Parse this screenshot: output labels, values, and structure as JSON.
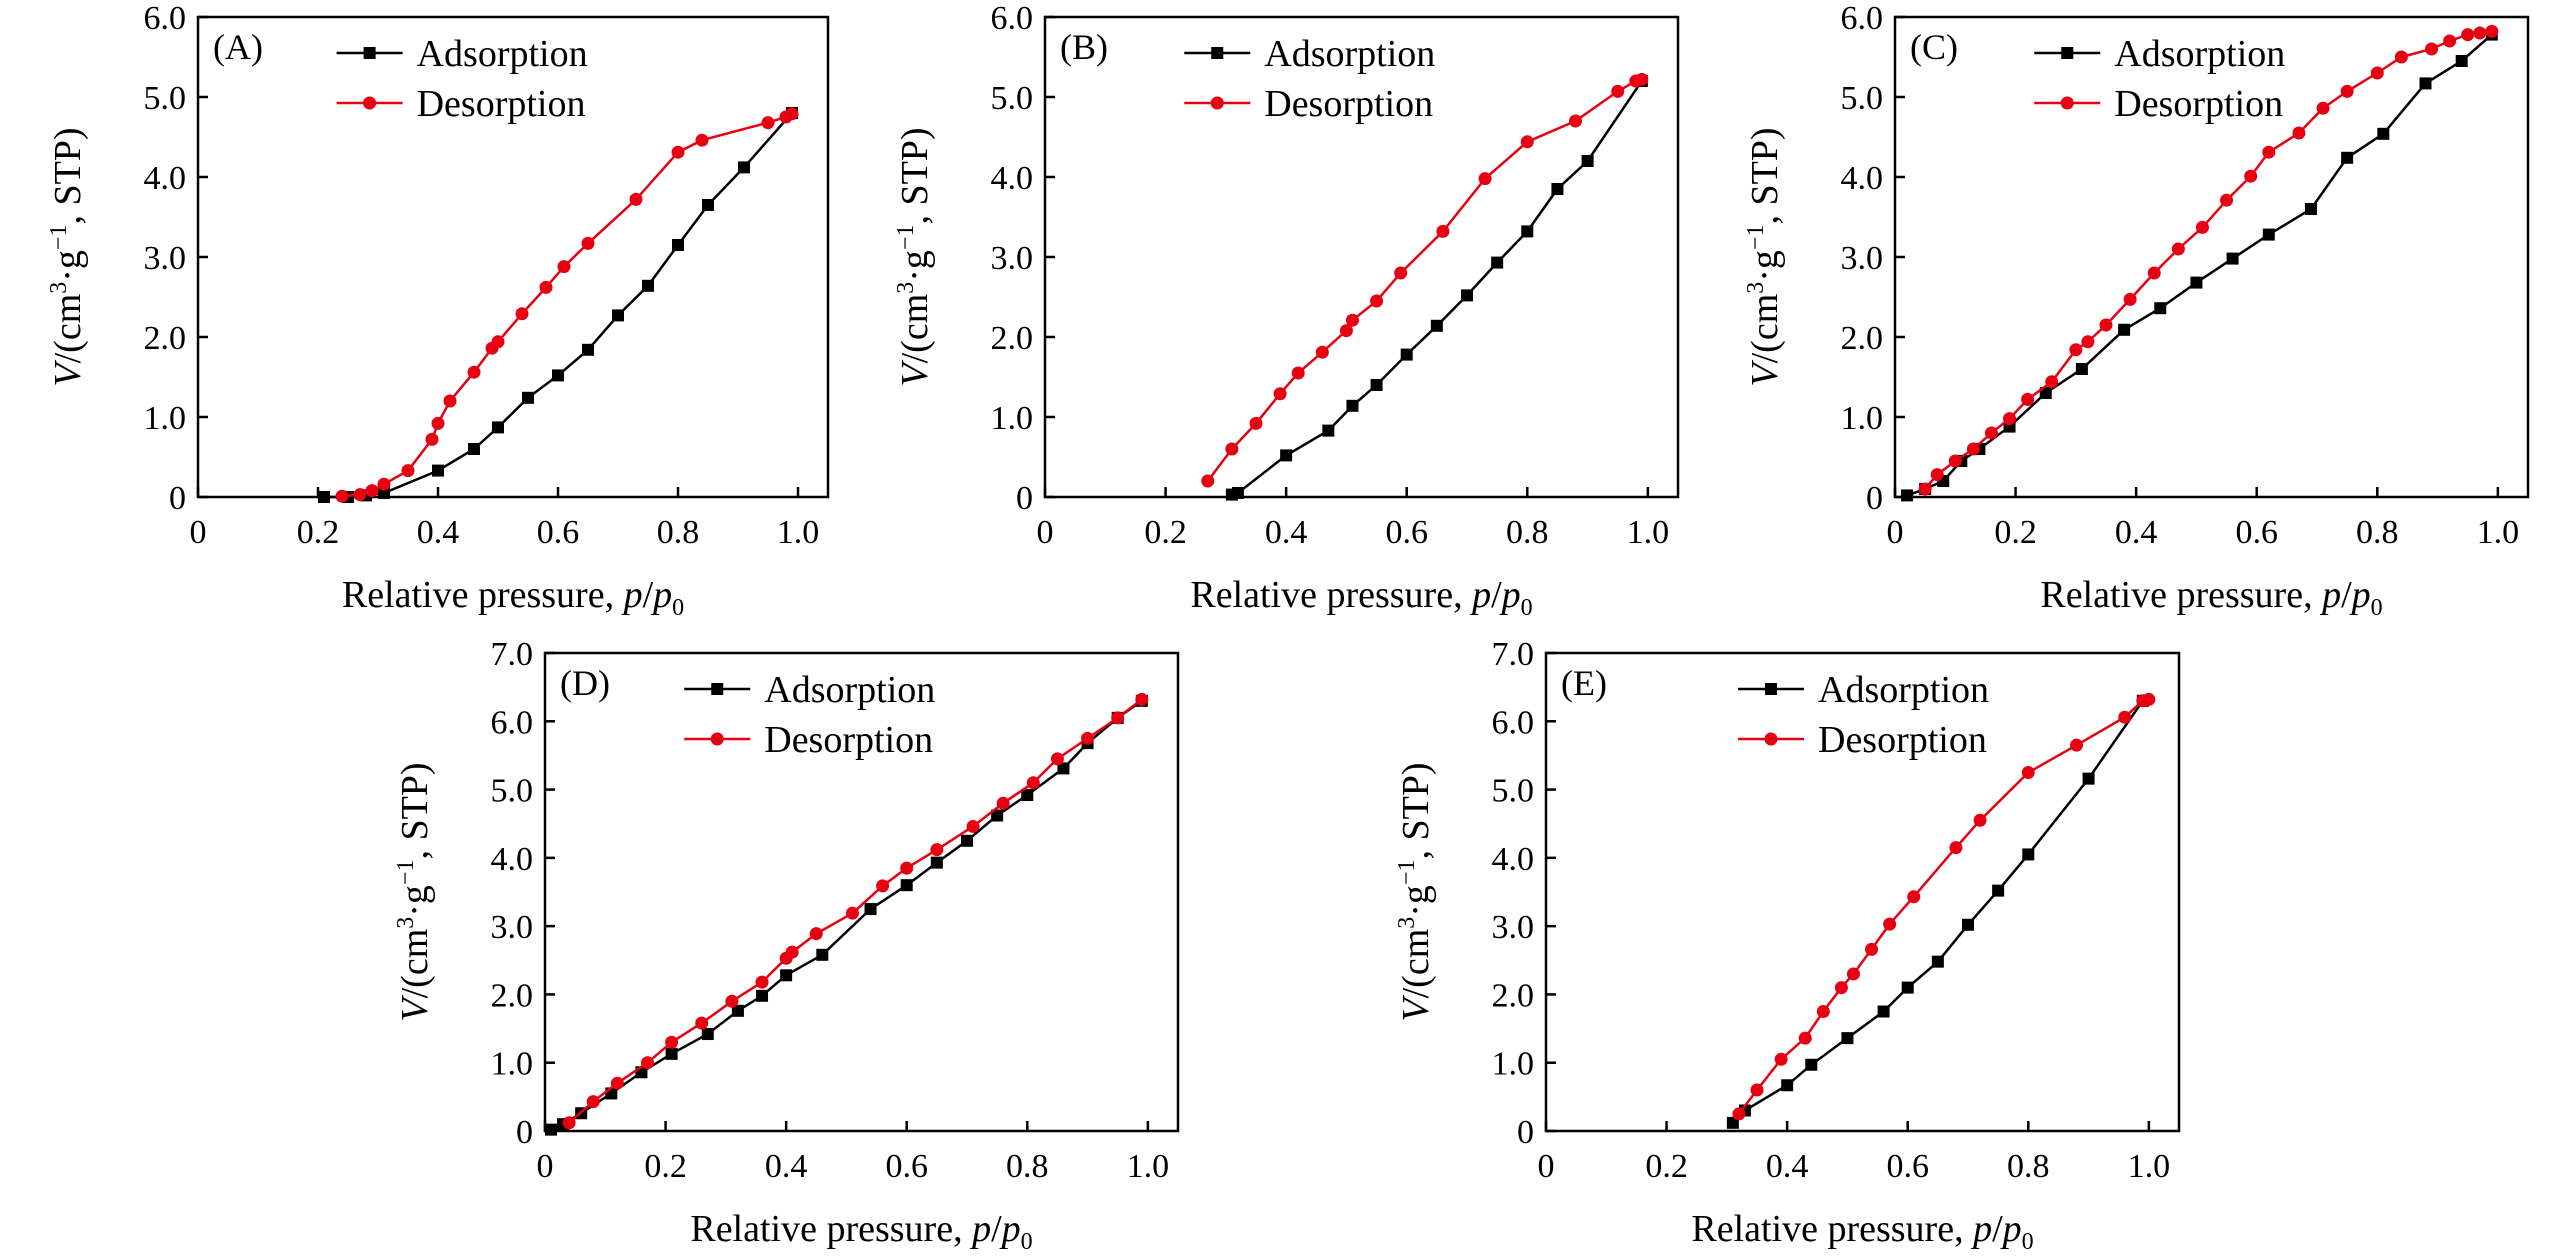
{
  "figure": {
    "legend_labels": {
      "adsorption": "Adsorption",
      "desorption": "Desorption"
    },
    "colors": {
      "adsorption": "#000000",
      "desorption": "#e60012",
      "axis": "#000000"
    },
    "x_axis_title": "Relative pressure,",
    "x_axis_var_p": "p",
    "x_axis_slash": "/",
    "x_axis_var_p0": "p",
    "x_axis_sub0": "0",
    "y_axis_title_V": "V",
    "y_axis_title_open": "/(cm",
    "y_axis_sup3": "3",
    "y_axis_dot_g": "·g",
    "y_axis_sup_minus1": "−1",
    "y_axis_title_close": ", STP)"
  },
  "chart_data": [
    {
      "type": "line",
      "panel_label": "(A)",
      "xlabel": "Relative pressure, p/p0",
      "ylabel": "V/(cm3·g−1, STP)",
      "xlim": [
        0,
        1.05
      ],
      "ylim": [
        0,
        6.0
      ],
      "xticks": [
        0,
        0.2,
        0.4,
        0.6,
        0.8,
        1.0
      ],
      "xtick_labels": [
        "0",
        "0.2",
        "0.4",
        "0.6",
        "0.8",
        "1.0"
      ],
      "yticks": [
        0,
        1.0,
        2.0,
        3.0,
        4.0,
        5.0,
        6.0
      ],
      "ytick_labels": [
        "0",
        "1.0",
        "2.0",
        "3.0",
        "4.0",
        "5.0",
        "6.0"
      ],
      "legend": "top-center",
      "series": [
        {
          "name": "Adsorption",
          "x": [
            0.21,
            0.25,
            0.28,
            0.31,
            0.4,
            0.46,
            0.5,
            0.55,
            0.6,
            0.65,
            0.7,
            0.75,
            0.8,
            0.85,
            0.91,
            0.99
          ],
          "y": [
            0,
            0,
            0.02,
            0.05,
            0.33,
            0.6,
            0.87,
            1.24,
            1.52,
            1.84,
            2.27,
            2.64,
            3.15,
            3.65,
            4.12,
            4.8
          ]
        },
        {
          "name": "Desorption",
          "x": [
            0.24,
            0.27,
            0.29,
            0.31,
            0.35,
            0.39,
            0.4,
            0.42,
            0.46,
            0.49,
            0.5,
            0.54,
            0.58,
            0.61,
            0.65,
            0.73,
            0.8,
            0.84,
            0.95,
            0.98,
            0.99
          ],
          "y": [
            0.01,
            0.03,
            0.08,
            0.16,
            0.33,
            0.72,
            0.92,
            1.2,
            1.56,
            1.86,
            1.94,
            2.29,
            2.62,
            2.88,
            3.17,
            3.72,
            4.31,
            4.46,
            4.68,
            4.75,
            4.79
          ]
        }
      ]
    },
    {
      "type": "line",
      "panel_label": "(B)",
      "xlabel": "Relative pressure, p/p0",
      "ylabel": "V/(cm3·g−1, STP)",
      "xlim": [
        0,
        1.05
      ],
      "ylim": [
        0,
        6.0
      ],
      "xticks": [
        0,
        0.2,
        0.4,
        0.6,
        0.8,
        1.0
      ],
      "xtick_labels": [
        "0",
        "0.2",
        "0.4",
        "0.6",
        "0.8",
        "1.0"
      ],
      "yticks": [
        0,
        1.0,
        2.0,
        3.0,
        4.0,
        5.0,
        6.0
      ],
      "ytick_labels": [
        "0",
        "1.0",
        "2.0",
        "3.0",
        "4.0",
        "5.0",
        "6.0"
      ],
      "legend": "top-center",
      "series": [
        {
          "name": "Adsorption",
          "x": [
            0.31,
            0.32,
            0.4,
            0.47,
            0.51,
            0.55,
            0.6,
            0.65,
            0.7,
            0.75,
            0.8,
            0.85,
            0.9,
            0.99
          ],
          "y": [
            0.03,
            0.05,
            0.52,
            0.83,
            1.14,
            1.4,
            1.78,
            2.14,
            2.52,
            2.93,
            3.32,
            3.85,
            4.2,
            5.2
          ]
        },
        {
          "name": "Desorption",
          "x": [
            0.27,
            0.31,
            0.35,
            0.39,
            0.42,
            0.46,
            0.5,
            0.51,
            0.55,
            0.59,
            0.66,
            0.73,
            0.8,
            0.88,
            0.95,
            0.98,
            0.99
          ],
          "y": [
            0.2,
            0.6,
            0.92,
            1.29,
            1.55,
            1.81,
            2.08,
            2.21,
            2.45,
            2.8,
            3.32,
            3.98,
            4.44,
            4.7,
            5.07,
            5.2,
            5.22
          ]
        }
      ]
    },
    {
      "type": "line",
      "panel_label": "(C)",
      "xlabel": "Relative pressure, p/p0",
      "ylabel": "V/(cm3·g−1, STP)",
      "xlim": [
        0,
        1.05
      ],
      "ylim": [
        0,
        6.0
      ],
      "xticks": [
        0,
        0.2,
        0.4,
        0.6,
        0.8,
        1.0
      ],
      "xtick_labels": [
        "0",
        "0.2",
        "0.4",
        "0.6",
        "0.8",
        "1.0"
      ],
      "yticks": [
        0,
        1.0,
        2.0,
        3.0,
        4.0,
        5.0,
        6.0
      ],
      "ytick_labels": [
        "0",
        "1.0",
        "2.0",
        "3.0",
        "4.0",
        "5.0",
        "6.0"
      ],
      "legend": "top-center",
      "series": [
        {
          "name": "Adsorption",
          "x": [
            0.02,
            0.05,
            0.08,
            0.11,
            0.14,
            0.19,
            0.25,
            0.31,
            0.38,
            0.44,
            0.5,
            0.56,
            0.62,
            0.69,
            0.75,
            0.81,
            0.88,
            0.94,
            0.99
          ],
          "y": [
            0.02,
            0.1,
            0.2,
            0.45,
            0.6,
            0.88,
            1.3,
            1.6,
            2.09,
            2.36,
            2.68,
            2.98,
            3.28,
            3.6,
            4.24,
            4.54,
            5.17,
            5.45,
            5.78
          ]
        },
        {
          "name": "Desorption",
          "x": [
            0.05,
            0.07,
            0.1,
            0.13,
            0.16,
            0.19,
            0.22,
            0.26,
            0.3,
            0.32,
            0.35,
            0.39,
            0.43,
            0.47,
            0.51,
            0.55,
            0.59,
            0.62,
            0.67,
            0.71,
            0.75,
            0.8,
            0.84,
            0.89,
            0.92,
            0.95,
            0.97,
            0.99
          ],
          "y": [
            0.1,
            0.28,
            0.45,
            0.6,
            0.8,
            0.98,
            1.22,
            1.44,
            1.84,
            1.94,
            2.15,
            2.47,
            2.8,
            3.1,
            3.37,
            3.71,
            4.01,
            4.31,
            4.55,
            4.86,
            5.07,
            5.3,
            5.5,
            5.6,
            5.7,
            5.78,
            5.8,
            5.82
          ]
        }
      ]
    },
    {
      "type": "line",
      "panel_label": "(D)",
      "xlabel": "Relative pressure, p/p0",
      "ylabel": "V/(cm3·g−1, STP)",
      "xlim": [
        0,
        1.05
      ],
      "ylim": [
        0,
        7.0
      ],
      "xticks": [
        0,
        0.2,
        0.4,
        0.6,
        0.8,
        1.0
      ],
      "xtick_labels": [
        "0",
        "0.2",
        "0.4",
        "0.6",
        "0.8",
        "1.0"
      ],
      "yticks": [
        0,
        1.0,
        2.0,
        3.0,
        4.0,
        5.0,
        6.0,
        7.0
      ],
      "ytick_labels": [
        "0",
        "1.0",
        "2.0",
        "3.0",
        "4.0",
        "5.0",
        "6.0",
        "7.0"
      ],
      "legend": "top-center",
      "series": [
        {
          "name": "Adsorption",
          "x": [
            0.01,
            0.03,
            0.06,
            0.11,
            0.16,
            0.21,
            0.27,
            0.32,
            0.36,
            0.4,
            0.46,
            0.54,
            0.6,
            0.65,
            0.7,
            0.75,
            0.8,
            0.86,
            0.9,
            0.95,
            0.99
          ],
          "y": [
            0.02,
            0.1,
            0.26,
            0.55,
            0.86,
            1.13,
            1.42,
            1.76,
            1.98,
            2.28,
            2.58,
            3.25,
            3.6,
            3.93,
            4.25,
            4.62,
            4.92,
            5.31,
            5.68,
            6.05,
            6.3
          ]
        },
        {
          "name": "Desorption",
          "x": [
            0.04,
            0.08,
            0.12,
            0.17,
            0.21,
            0.26,
            0.31,
            0.36,
            0.4,
            0.41,
            0.45,
            0.51,
            0.56,
            0.6,
            0.65,
            0.71,
            0.76,
            0.81,
            0.85,
            0.9,
            0.95,
            0.99
          ],
          "y": [
            0.12,
            0.43,
            0.7,
            1.0,
            1.3,
            1.58,
            1.9,
            2.18,
            2.53,
            2.62,
            2.89,
            3.19,
            3.59,
            3.85,
            4.12,
            4.46,
            4.8,
            5.1,
            5.45,
            5.75,
            6.05,
            6.32
          ]
        }
      ]
    },
    {
      "type": "line",
      "panel_label": "(E)",
      "xlabel": "Relative pressure, p/p0",
      "ylabel": "V/(cm3·g−1, STP)",
      "xlim": [
        0,
        1.05
      ],
      "ylim": [
        0,
        7.0
      ],
      "xticks": [
        0,
        0.2,
        0.4,
        0.6,
        0.8,
        1.0
      ],
      "xtick_labels": [
        "0",
        "0.2",
        "0.4",
        "0.6",
        "0.8",
        "1.0"
      ],
      "yticks": [
        0,
        1.0,
        2.0,
        3.0,
        4.0,
        5.0,
        6.0,
        7.0
      ],
      "ytick_labels": [
        "0",
        "1.0",
        "2.0",
        "3.0",
        "4.0",
        "5.0",
        "6.0",
        "7.0"
      ],
      "legend": "top-left",
      "series": [
        {
          "name": "Adsorption",
          "x": [
            0.31,
            0.33,
            0.4,
            0.44,
            0.5,
            0.56,
            0.6,
            0.65,
            0.7,
            0.75,
            0.8,
            0.9,
            0.99
          ],
          "y": [
            0.12,
            0.3,
            0.67,
            0.97,
            1.36,
            1.75,
            2.1,
            2.48,
            3.02,
            3.52,
            4.05,
            5.16,
            6.3
          ]
        },
        {
          "name": "Desorption",
          "x": [
            0.32,
            0.35,
            0.39,
            0.43,
            0.46,
            0.49,
            0.51,
            0.54,
            0.57,
            0.61,
            0.68,
            0.72,
            0.8,
            0.88,
            0.96,
            0.99,
            1.0
          ],
          "y": [
            0.25,
            0.6,
            1.05,
            1.36,
            1.75,
            2.1,
            2.3,
            2.66,
            3.03,
            3.43,
            4.15,
            4.55,
            5.25,
            5.65,
            6.06,
            6.3,
            6.32
          ]
        }
      ]
    }
  ]
}
